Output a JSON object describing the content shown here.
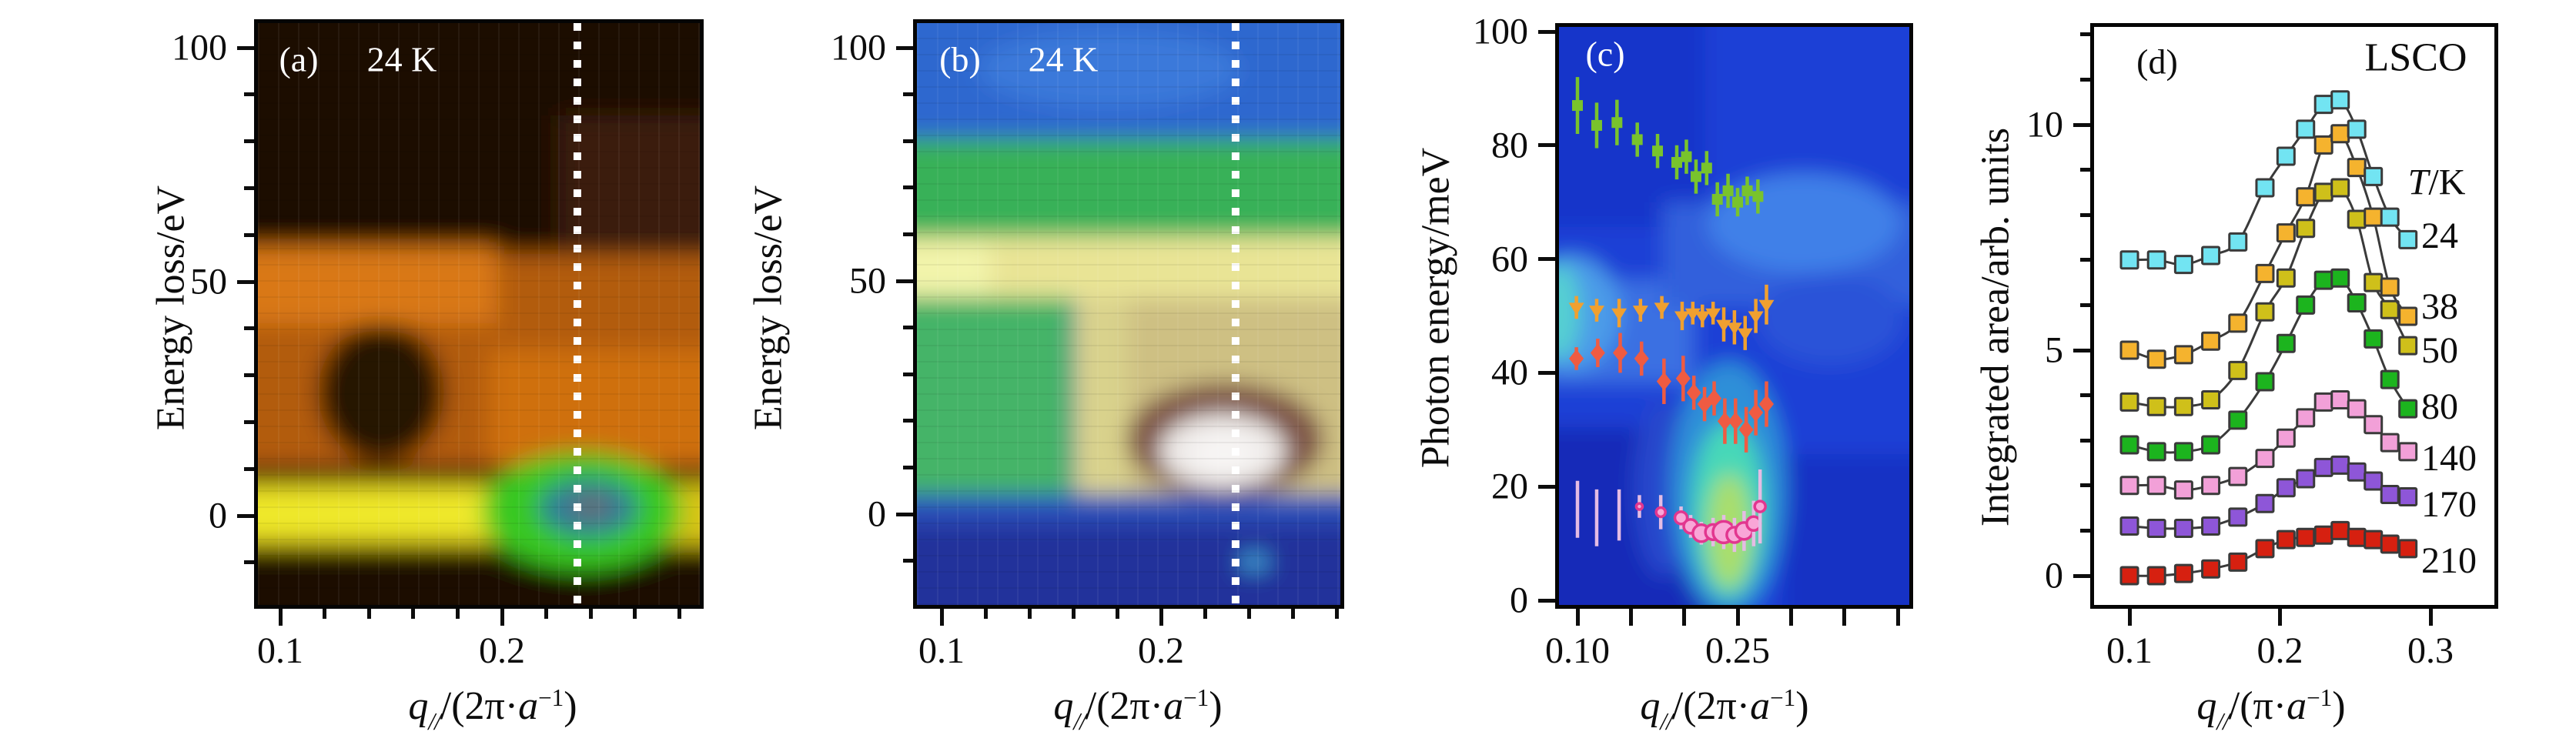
{
  "panels": {
    "a": {
      "label": "(a)",
      "temp_label": "24 K",
      "ylabel": "Energy loss/eV",
      "xlabel": {
        "q": "q",
        "sub": "//",
        "mid": "/(2π·",
        "a": "a",
        "sup": "−1",
        "end": ")"
      },
      "x_ticks": [
        {
          "v": 0.1,
          "label": "0.1"
        },
        {
          "v": 0.12
        },
        {
          "v": 0.14
        },
        {
          "v": 0.16
        },
        {
          "v": 0.18
        },
        {
          "v": 0.2,
          "label": "0.2"
        },
        {
          "v": 0.22
        },
        {
          "v": 0.24
        },
        {
          "v": 0.26
        },
        {
          "v": 0.28
        }
      ],
      "y_ticks": [
        {
          "v": -10
        },
        {
          "v": 0,
          "label": "0"
        },
        {
          "v": 10
        },
        {
          "v": 20
        },
        {
          "v": 30
        },
        {
          "v": 40
        },
        {
          "v": 50,
          "label": "50"
        },
        {
          "v": 60
        },
        {
          "v": 70
        },
        {
          "v": 80
        },
        {
          "v": 90
        },
        {
          "v": 100,
          "label": "100"
        }
      ],
      "dotted_line_q": 0.234
    },
    "b": {
      "label": "(b)",
      "temp_label": "24 K",
      "ylabel": "Energy loss/eV",
      "xlabel": {
        "q": "q",
        "sub": "//",
        "mid": "/(2π·",
        "a": "a",
        "sup": "−1",
        "end": ")"
      },
      "x_ticks": [
        {
          "v": 0.1,
          "label": "0.1"
        },
        {
          "v": 0.12
        },
        {
          "v": 0.14
        },
        {
          "v": 0.16
        },
        {
          "v": 0.18
        },
        {
          "v": 0.2,
          "label": "0.2"
        },
        {
          "v": 0.22
        },
        {
          "v": 0.24
        },
        {
          "v": 0.26
        },
        {
          "v": 0.28
        }
      ],
      "y_ticks": [
        {
          "v": -10
        },
        {
          "v": 0,
          "label": "0"
        },
        {
          "v": 10
        },
        {
          "v": 20
        },
        {
          "v": 30
        },
        {
          "v": 40
        },
        {
          "v": 50,
          "label": "50"
        },
        {
          "v": 60
        },
        {
          "v": 70
        },
        {
          "v": 80
        },
        {
          "v": 90
        },
        {
          "v": 100,
          "label": "100"
        }
      ],
      "dotted_line_q": 0.234
    },
    "c": {
      "label": "(c)",
      "ylabel": "Photon energy/meV",
      "xlabel": {
        "q": "q",
        "sub": "//",
        "mid": "/(2π·",
        "a": "a",
        "sup": "−1",
        "end": ")"
      },
      "x_ticks": [
        {
          "v": 0.1,
          "label": "0.10",
          "len": 22
        },
        {
          "v": 0.15,
          "len": 22
        },
        {
          "v": 0.2,
          "len": 22
        },
        {
          "v": 0.25,
          "label": "0.25",
          "len": 22
        },
        {
          "v": 0.3,
          "len": 22
        },
        {
          "v": 0.35,
          "len": 22
        },
        {
          "v": 0.4,
          "len": 22
        }
      ],
      "y_ticks": [
        {
          "v": 0,
          "label": "0"
        },
        {
          "v": 20,
          "label": "20"
        },
        {
          "v": 40,
          "label": "40"
        },
        {
          "v": 60,
          "label": "60"
        },
        {
          "v": 80,
          "label": "80"
        },
        {
          "v": 100,
          "label": "100"
        }
      ]
    },
    "d": {
      "label": "(d)",
      "sample": "LSCO",
      "ylabel": "Integrated area/arb. units",
      "xlabel": {
        "q": "q",
        "sub": "//",
        "mid": "/(π·",
        "a": "a",
        "sup": "−1",
        "end": ")"
      },
      "legend": {
        "title_t": "T",
        "title_rest": "/K",
        "temps": [
          "24",
          "38",
          "50",
          "80",
          "140",
          "170",
          "210"
        ]
      },
      "x_ticks": [
        {
          "v": 0.1,
          "label": "0.1"
        },
        {
          "v": 0.2,
          "label": "0.2"
        },
        {
          "v": 0.3,
          "label": "0.3"
        }
      ],
      "y_ticks": [
        {
          "v": 0,
          "label": "0"
        },
        {
          "v": 1
        },
        {
          "v": 2
        },
        {
          "v": 3
        },
        {
          "v": 4
        },
        {
          "v": 5,
          "label": "5"
        },
        {
          "v": 6
        },
        {
          "v": 7
        },
        {
          "v": 8
        },
        {
          "v": 9
        },
        {
          "v": 10,
          "label": "10"
        },
        {
          "v": 11
        },
        {
          "v": 12
        }
      ]
    }
  },
  "chart_data": [
    {
      "panel": "a",
      "type": "heatmap",
      "title": "(a) 24 K",
      "xlabel": "q///(2π·a−1)",
      "ylabel": "Energy loss/eV",
      "x_range": [
        0.088,
        0.289
      ],
      "y_range": [
        -19,
        105
      ],
      "colormap": "black→brown→orange→yellow→green→teal-blue (low→high)",
      "dotted_line_q": 0.234,
      "features": [
        "bright yellow elastic band at energy loss ≈ 0 across all q",
        "green blob with teal-blue core centered near q≈0.236, E≈0-3 eV",
        "broad orange band for E≈12-57 eV",
        "dark brown background above E≈60 eV and below E≈-12 eV",
        "darker patch near q≈0.12-0.17, E≈12-40 eV",
        "white dotted vertical line at q≈0.234"
      ]
    },
    {
      "panel": "b",
      "type": "heatmap",
      "title": "(b) 24 K",
      "xlabel": "q///(2π·a−1)",
      "ylabel": "Energy loss/eV",
      "x_range": [
        0.089,
        0.282
      ],
      "y_range": [
        -19,
        105
      ],
      "colormap": "navy→blue→green→yellow→khaki/tan→brown→white (low→high)",
      "dotted_line_q": 0.234,
      "features": [
        "white maximum blob at q≈0.228, E≈13 eV surrounded by brown ring",
        "tan/khaki region E≈8-46 eV on right half",
        "pale yellow band E≈47-60 eV across all q",
        "green band E≈58-80 eV, blue above",
        "dark navy below E≈0",
        "white dotted vertical line at q≈0.234"
      ]
    },
    {
      "panel": "c",
      "type": "heatmap+scatter",
      "title": "(c)",
      "xlabel": "q///(2π·a−1)",
      "ylabel": "Photon energy/meV",
      "x_range": [
        0.083,
        0.405
      ],
      "y_range": [
        0,
        100.5
      ],
      "colormap": "blue background; bright cyan-green column near q≈0.24, E≈0-28 meV; lighter blue bands near E≈50 and E≈65",
      "series": [
        {
          "name": "branch-high",
          "marker": "square",
          "color": "#79c32c",
          "points": [
            [
              0.1,
              87,
              5
            ],
            [
              0.118,
              83.5,
              4
            ],
            [
              0.137,
              84,
              4
            ],
            [
              0.156,
              81,
              3
            ],
            [
              0.175,
              79,
              3
            ],
            [
              0.193,
              77,
              3
            ],
            [
              0.202,
              78,
              3
            ],
            [
              0.211,
              74.5,
              3
            ],
            [
              0.221,
              76,
              3
            ],
            [
              0.231,
              70.5,
              3
            ],
            [
              0.241,
              72,
              3
            ],
            [
              0.25,
              70,
              2.5
            ],
            [
              0.259,
              72,
              2.5
            ],
            [
              0.269,
              71,
              3
            ]
          ]
        },
        {
          "name": "branch-mid-upper",
          "marker": "triangle-down",
          "color": "#f0a030",
          "points": [
            [
              0.099,
              51.5,
              2
            ],
            [
              0.118,
              51,
              2
            ],
            [
              0.139,
              50.5,
              2.5
            ],
            [
              0.159,
              51,
              2
            ],
            [
              0.179,
              51.5,
              2
            ],
            [
              0.198,
              50,
              2.5
            ],
            [
              0.208,
              50.5,
              2
            ],
            [
              0.217,
              50,
              2
            ],
            [
              0.227,
              50.5,
              2
            ],
            [
              0.237,
              48.5,
              3
            ],
            [
              0.247,
              48,
              3
            ],
            [
              0.257,
              47,
              3
            ],
            [
              0.267,
              50,
              3
            ],
            [
              0.277,
              52,
              3.5
            ]
          ]
        },
        {
          "name": "branch-mid-lower",
          "marker": "diamond",
          "color": "#ef5b42",
          "points": [
            [
              0.099,
              42.5,
              2
            ],
            [
              0.119,
              43.5,
              2.5
            ],
            [
              0.14,
              43.5,
              3.5
            ],
            [
              0.16,
              42.5,
              3
            ],
            [
              0.181,
              38.5,
              4
            ],
            [
              0.199,
              39,
              4
            ],
            [
              0.209,
              36.5,
              3
            ],
            [
              0.219,
              34.5,
              3
            ],
            [
              0.228,
              35.5,
              3
            ],
            [
              0.238,
              31.5,
              4
            ],
            [
              0.248,
              31.5,
              4
            ],
            [
              0.258,
              30,
              4
            ],
            [
              0.267,
              33,
              4
            ],
            [
              0.277,
              34.5,
              4
            ]
          ]
        },
        {
          "name": "branch-low",
          "marker": "circle",
          "color": "#f9a6d7",
          "stroke": "#e2368f",
          "bar_color": "#e4bce4",
          "points": [
            [
              0.1,
              16,
              5,
              0
            ],
            [
              0.118,
              14.5,
              5,
              0
            ],
            [
              0.139,
              15,
              4.5,
              0
            ],
            [
              0.158,
              16.5,
              2,
              4
            ],
            [
              0.178,
              15.5,
              3,
              6
            ],
            [
              0.197,
              14.5,
              2,
              8
            ],
            [
              0.206,
              13,
              2,
              9
            ],
            [
              0.216,
              11.8,
              2,
              11
            ],
            [
              0.227,
              12,
              2.5,
              10
            ],
            [
              0.237,
              12,
              3,
              14
            ],
            [
              0.247,
              11.5,
              3,
              10
            ],
            [
              0.256,
              12.2,
              3.5,
              11
            ],
            [
              0.265,
              13.5,
              4,
              9
            ],
            [
              0.271,
              16.5,
              6.5,
              7
            ]
          ]
        }
      ]
    },
    {
      "panel": "d",
      "type": "line",
      "title": "(d) LSCO",
      "xlabel": "q///(π·a−1)",
      "ylabel": "Integrated area/arb. units",
      "x_range": [
        0.077,
        0.345
      ],
      "y_range": [
        -0.6,
        12.2
      ],
      "legend_title": "T/K",
      "x": [
        0.1,
        0.118,
        0.136,
        0.154,
        0.172,
        0.19,
        0.204,
        0.217,
        0.229,
        0.24,
        0.251,
        0.262,
        0.273,
        0.285
      ],
      "series": [
        {
          "name": "24",
          "color": "#72e4f2",
          "values": [
            7.0,
            7.0,
            6.9,
            7.1,
            7.4,
            8.6,
            9.3,
            9.9,
            10.45,
            10.55,
            9.9,
            8.85,
            7.95,
            7.45
          ]
        },
        {
          "name": "38",
          "color": "#f5b32e",
          "values": [
            5.0,
            4.8,
            4.9,
            5.2,
            5.6,
            6.7,
            7.6,
            8.4,
            9.55,
            9.8,
            9.05,
            7.95,
            6.4,
            5.75
          ]
        },
        {
          "name": "50",
          "color": "#cfc01a",
          "values": [
            3.85,
            3.75,
            3.75,
            3.9,
            4.55,
            5.85,
            6.6,
            7.7,
            8.5,
            8.6,
            7.9,
            6.5,
            5.9,
            5.1
          ]
        },
        {
          "name": "80",
          "color": "#1cb41e",
          "values": [
            2.9,
            2.75,
            2.75,
            2.9,
            3.45,
            4.3,
            5.15,
            6.0,
            6.55,
            6.6,
            6.05,
            5.25,
            4.35,
            3.7
          ]
        },
        {
          "name": "140",
          "color": "#f2a0d8",
          "values": [
            2.0,
            2.0,
            1.9,
            2.0,
            2.2,
            2.6,
            3.05,
            3.5,
            3.85,
            3.9,
            3.7,
            3.35,
            2.95,
            2.75
          ]
        },
        {
          "name": "170",
          "color": "#8e56d8",
          "values": [
            1.1,
            1.05,
            1.05,
            1.1,
            1.3,
            1.6,
            1.95,
            2.15,
            2.4,
            2.45,
            2.3,
            2.1,
            1.8,
            1.75
          ]
        },
        {
          "name": "210",
          "color": "#d62010",
          "values": [
            0.0,
            0.0,
            0.05,
            0.15,
            0.3,
            0.6,
            0.8,
            0.85,
            0.9,
            1.0,
            0.85,
            0.8,
            0.7,
            0.6
          ]
        }
      ]
    }
  ]
}
